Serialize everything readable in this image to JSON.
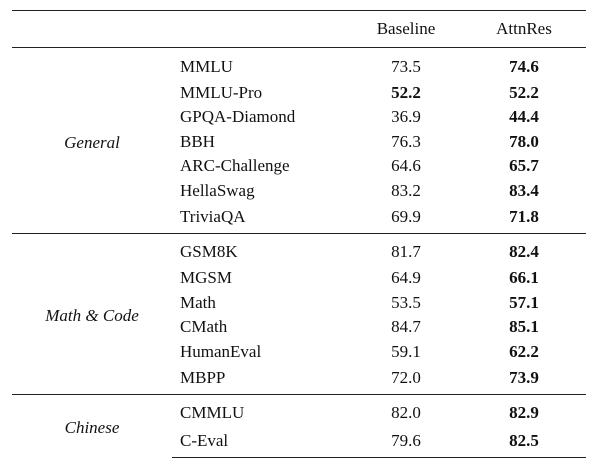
{
  "table": {
    "headers": {
      "group": "",
      "benchmark": "",
      "baseline": "Baseline",
      "attnres": "AttnRes"
    },
    "sections": [
      {
        "label": "General",
        "rows": [
          {
            "benchmark": "MMLU",
            "baseline": "73.5",
            "attnres": "74.6",
            "bold": "attnres"
          },
          {
            "benchmark": "MMLU-Pro",
            "baseline": "52.2",
            "attnres": "52.2",
            "bold": "baseline"
          },
          {
            "benchmark": "GPQA-Diamond",
            "baseline": "36.9",
            "attnres": "44.4",
            "bold": "attnres"
          },
          {
            "benchmark": "BBH",
            "baseline": "76.3",
            "attnres": "78.0",
            "bold": "attnres"
          },
          {
            "benchmark": "ARC-Challenge",
            "baseline": "64.6",
            "attnres": "65.7",
            "bold": "attnres"
          },
          {
            "benchmark": "HellaSwag",
            "baseline": "83.2",
            "attnres": "83.4",
            "bold": "attnres"
          },
          {
            "benchmark": "TriviaQA",
            "baseline": "69.9",
            "attnres": "71.8",
            "bold": "attnres"
          }
        ]
      },
      {
        "label": "Math & Code",
        "rows": [
          {
            "benchmark": "GSM8K",
            "baseline": "81.7",
            "attnres": "82.4",
            "bold": "attnres"
          },
          {
            "benchmark": "MGSM",
            "baseline": "64.9",
            "attnres": "66.1",
            "bold": "attnres"
          },
          {
            "benchmark": "Math",
            "baseline": "53.5",
            "attnres": "57.1",
            "bold": "attnres"
          },
          {
            "benchmark": "CMath",
            "baseline": "84.7",
            "attnres": "85.1",
            "bold": "attnres"
          },
          {
            "benchmark": "HumanEval",
            "baseline": "59.1",
            "attnres": "62.2",
            "bold": "attnres"
          },
          {
            "benchmark": "MBPP",
            "baseline": "72.0",
            "attnres": "73.9",
            "bold": "attnres"
          }
        ]
      },
      {
        "label": "Chinese",
        "rows": [
          {
            "benchmark": "CMMLU",
            "baseline": "82.0",
            "attnres": "82.9",
            "bold": "attnres"
          },
          {
            "benchmark": "C-Eval",
            "baseline": "79.6",
            "attnres": "82.5",
            "bold": "attnres"
          }
        ]
      }
    ]
  }
}
